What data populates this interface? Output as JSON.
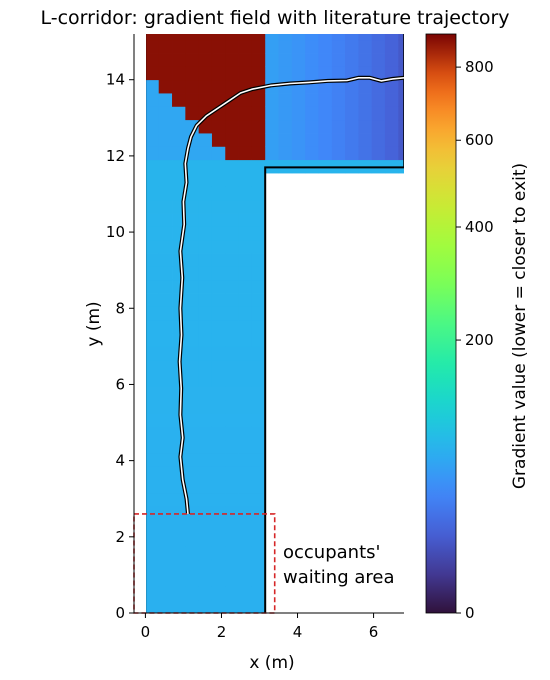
{
  "chart_data": {
    "type": "heatmap",
    "title": "L-corridor: gradient field with literature trajectory",
    "xlabel": "x (m)",
    "ylabel": "y (m)",
    "xlim": [
      -0.3,
      6.8
    ],
    "ylim": [
      0,
      15.2
    ],
    "x_ticks": [
      0,
      2,
      4,
      6
    ],
    "y_ticks": [
      0,
      2,
      4,
      6,
      8,
      10,
      12,
      14
    ],
    "colorbar": {
      "label": "Gradient value (lower = closer to exit)",
      "range": [
        0,
        900
      ],
      "ticks": [
        0,
        200,
        400,
        600,
        800
      ],
      "colormap": "turbo",
      "scale": "sqrt"
    },
    "corridor": {
      "vertical_leg": {
        "x": [
          0,
          3.15
        ],
        "y": [
          0,
          15.2
        ]
      },
      "horizontal_leg": {
        "x": [
          3.15,
          6.8
        ],
        "y": [
          11.7,
          15.2
        ]
      }
    },
    "trajectory": {
      "points": [
        [
          1.12,
          2.6
        ],
        [
          1.08,
          3.0
        ],
        [
          0.98,
          3.5
        ],
        [
          0.92,
          4.1
        ],
        [
          0.98,
          4.6
        ],
        [
          0.92,
          5.2
        ],
        [
          0.94,
          5.9
        ],
        [
          0.9,
          6.6
        ],
        [
          0.95,
          7.3
        ],
        [
          0.92,
          8.0
        ],
        [
          0.97,
          8.8
        ],
        [
          0.92,
          9.5
        ],
        [
          1.02,
          10.2
        ],
        [
          1.0,
          10.8
        ],
        [
          1.08,
          11.3
        ],
        [
          1.05,
          11.8
        ],
        [
          1.12,
          12.2
        ],
        [
          1.2,
          12.5
        ],
        [
          1.35,
          12.8
        ],
        [
          1.6,
          13.05
        ],
        [
          1.9,
          13.25
        ],
        [
          2.2,
          13.45
        ],
        [
          2.5,
          13.65
        ],
        [
          2.8,
          13.75
        ],
        [
          3.3,
          13.85
        ],
        [
          3.8,
          13.9
        ],
        [
          4.3,
          13.93
        ],
        [
          4.8,
          13.97
        ],
        [
          5.3,
          13.98
        ],
        [
          5.6,
          14.05
        ],
        [
          5.9,
          14.05
        ],
        [
          6.2,
          13.97
        ],
        [
          6.5,
          14.02
        ],
        [
          6.8,
          14.05
        ]
      ]
    },
    "waiting_area": {
      "label": "occupants'\nwaiting area",
      "x": [
        -0.3,
        3.4
      ],
      "y": [
        0,
        2.6
      ]
    }
  }
}
